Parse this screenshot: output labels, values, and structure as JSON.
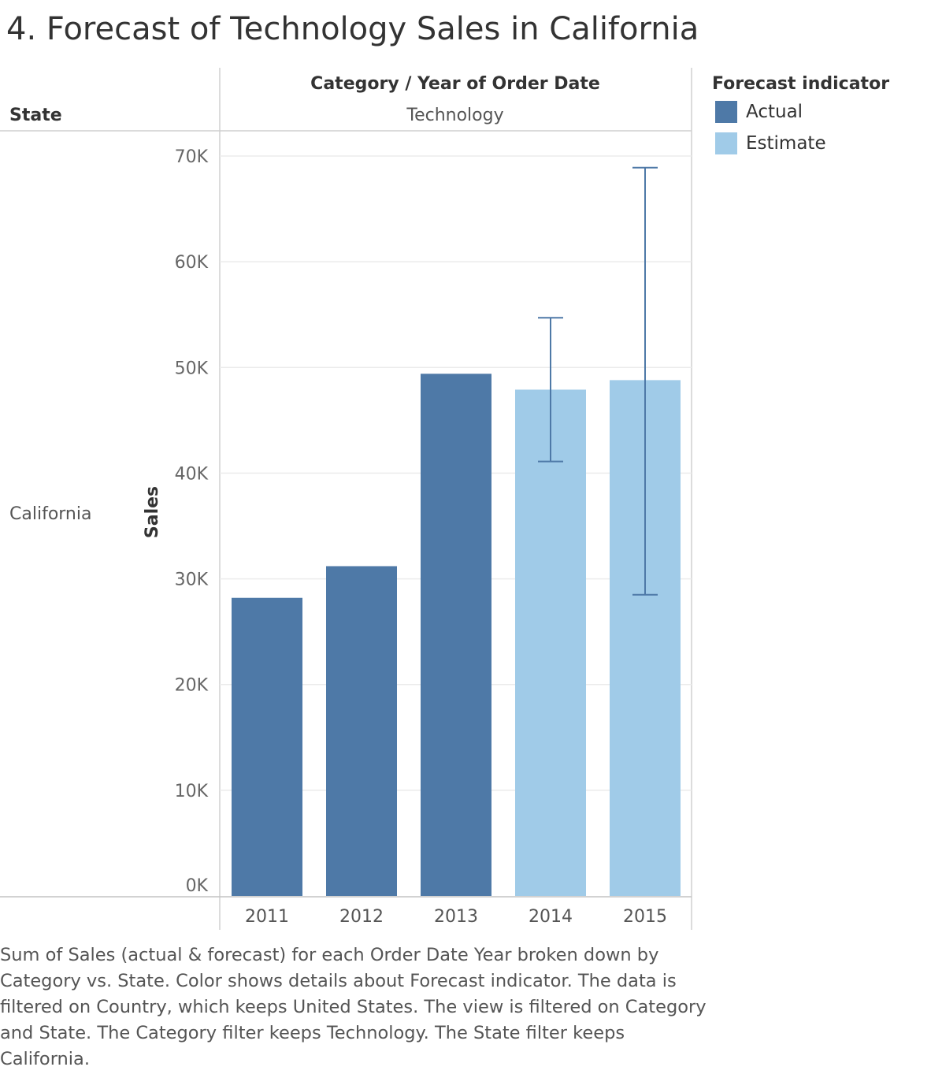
{
  "title": "4. Forecast of Technology Sales in California",
  "header": {
    "column_header": "Category  /  Year of Order Date",
    "category": "Technology",
    "row_header": "State",
    "row_value": "California"
  },
  "legend": {
    "title": "Forecast indicator",
    "items": [
      {
        "label": "Actual",
        "color": "#4e79a7"
      },
      {
        "label": "Estimate",
        "color": "#a0cbe8"
      }
    ]
  },
  "chart_data": {
    "type": "bar",
    "title": "4. Forecast of Technology Sales in California",
    "xlabel": "",
    "ylabel": "Sales",
    "categories": [
      "2011",
      "2012",
      "2013",
      "2014",
      "2015"
    ],
    "values": [
      28200,
      31200,
      49400,
      47900,
      48800
    ],
    "indicator": [
      "Actual",
      "Actual",
      "Actual",
      "Estimate",
      "Estimate"
    ],
    "error_bars": [
      null,
      null,
      null,
      {
        "low": 41100,
        "high": 54700
      },
      {
        "low": 28500,
        "high": 68900
      }
    ],
    "ylim": [
      0,
      70000
    ],
    "y_ticks": [
      0,
      10000,
      20000,
      30000,
      40000,
      50000,
      60000,
      70000
    ],
    "y_tick_labels": [
      "0K",
      "10K",
      "20K",
      "30K",
      "40K",
      "50K",
      "60K",
      "70K"
    ],
    "grid": true,
    "legend_position": "top-right",
    "colors": {
      "Actual": "#4e79a7",
      "Estimate": "#a0cbe8",
      "error_bar": "#4e79a7"
    }
  },
  "caption": "Sum of Sales (actual & forecast)  for each Order Date Year broken down by Category vs. State.  Color shows details about Forecast indicator. The data is filtered on Country, which keeps United States. The view is filtered on Category and State. The Category filter keeps Technology. The State filter keeps California."
}
